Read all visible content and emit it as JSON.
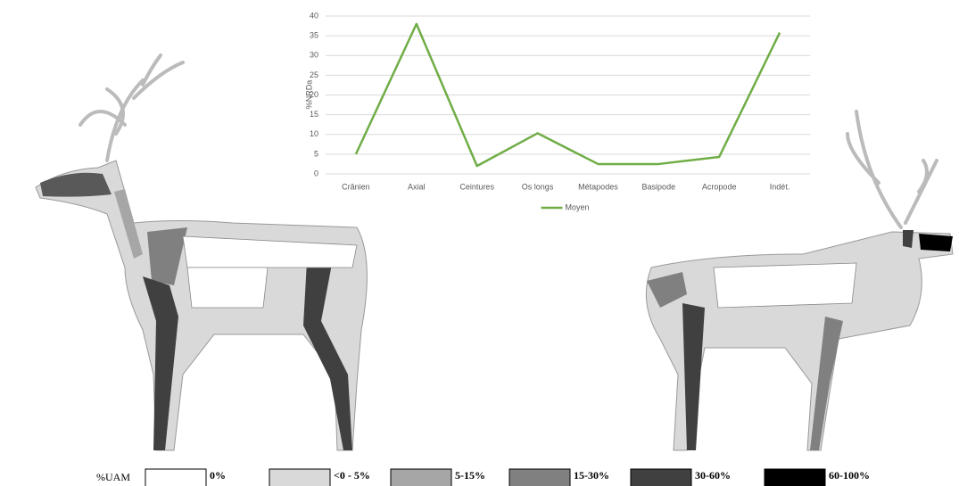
{
  "chart_data": {
    "type": "line",
    "y_label": "%NRDa",
    "categories": [
      "Crânien",
      "Axial",
      "Ceintures",
      "Os longs",
      "Métapodes",
      "Basipode",
      "Acropode",
      "Indét."
    ],
    "series": [
      {
        "name": "Moyen",
        "color": "#70ad47",
        "values": [
          5,
          38,
          2,
          10.3,
          2.5,
          2.5,
          4.3,
          35.8
        ]
      }
    ],
    "ylim": [
      0,
      40
    ],
    "yticks": [
      0,
      5,
      10,
      15,
      20,
      25,
      30,
      35,
      40
    ],
    "grid": true
  },
  "uam_legend": {
    "title": "%UAM",
    "items": [
      {
        "label": "0%",
        "color": "#ffffff"
      },
      {
        "label": "<0 - 5%",
        "color": "#d9d9d9"
      },
      {
        "label": "5-15%",
        "color": "#a6a6a6"
      },
      {
        "label": "15-30%",
        "color": "#808080"
      },
      {
        "label": "30-60%",
        "color": "#404040"
      },
      {
        "label": "60-100%",
        "color": "#000000"
      }
    ]
  }
}
